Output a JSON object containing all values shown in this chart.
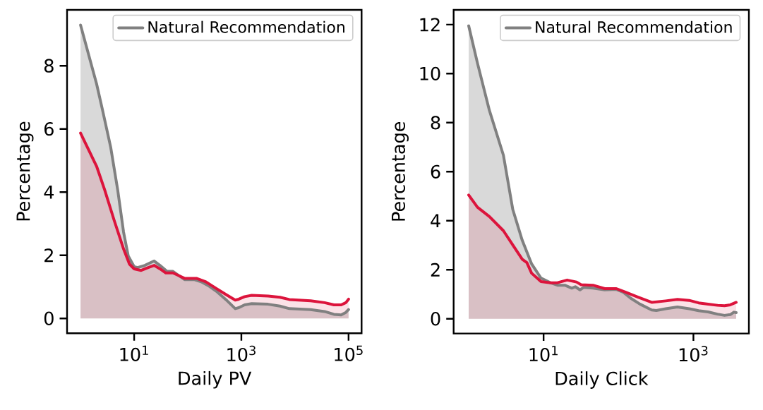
{
  "chart_data": [
    {
      "type": "area",
      "xlabel": "Daily PV",
      "ylabel": "Percentage",
      "log": "x",
      "legend": "top right",
      "xlim": [
        0.56,
        175000
      ],
      "ylim": [
        -0.47,
        9.77
      ],
      "xticks": [
        {
          "value": 10,
          "label": "10$^{1}$"
        },
        {
          "value": 1000,
          "label": "10$^{3}$"
        },
        {
          "value": 100000,
          "label": "10$^{5}$"
        }
      ],
      "yticks": [
        0,
        2,
        4,
        6,
        8
      ],
      "series": [
        {
          "name": "Natural Recommendation",
          "color": "#808080",
          "x": [
            1,
            1.99,
            2.56,
            3.65,
            4.93,
            6.35,
            7.76,
            10,
            11.6,
            15.8,
            23.6,
            30.3,
            41,
            53,
            87,
            131,
            178,
            241,
            343,
            513,
            769,
            894,
            1150,
            1560,
            3160,
            5250,
            7850,
            19600,
            35700,
            53300,
            72700,
            89000,
            100000
          ],
          "values": [
            9.29,
            7.43,
            6.61,
            5.42,
            4.07,
            2.73,
            1.98,
            1.64,
            1.61,
            1.68,
            1.82,
            1.68,
            1.49,
            1.49,
            1.23,
            1.23,
            1.16,
            1.04,
            0.86,
            0.6,
            0.31,
            0.34,
            0.43,
            0.47,
            0.45,
            0.39,
            0.31,
            0.28,
            0.22,
            0.13,
            0.11,
            0.19,
            0.28
          ]
        },
        {
          "color": "#dc143c",
          "x": [
            1,
            1.99,
            2.82,
            4.25,
            6.35,
            8.17,
            10,
            13.5,
            18.3,
            23.6,
            30.3,
            39,
            53,
            87,
            145,
            218,
            326,
            513,
            769,
            894,
            1150,
            1560,
            3160,
            5250,
            7850,
            19600,
            35700,
            53300,
            72700,
            89000,
            100000
          ],
          "values": [
            5.87,
            4.82,
            4.07,
            3.1,
            2.2,
            1.72,
            1.57,
            1.52,
            1.61,
            1.68,
            1.57,
            1.44,
            1.44,
            1.27,
            1.27,
            1.16,
            0.97,
            0.76,
            0.58,
            0.61,
            0.69,
            0.73,
            0.71,
            0.67,
            0.6,
            0.56,
            0.5,
            0.43,
            0.43,
            0.5,
            0.61
          ]
        }
      ]
    },
    {
      "type": "area",
      "xlabel": "Daily Click",
      "ylabel": "Percentage",
      "log": "x",
      "legend": "top right",
      "xlim": [
        0.63,
        5500
      ],
      "ylim": [
        -0.6,
        12.6
      ],
      "xticks": [
        {
          "value": 10,
          "label": "10$^{1}$"
        },
        {
          "value": 1000,
          "label": "10$^{3}$"
        }
      ],
      "yticks": [
        0,
        2,
        4,
        6,
        8,
        10,
        12
      ],
      "series": [
        {
          "name": "Natural Recommendation",
          "color": "#808080",
          "x": [
            1,
            1.31,
            1.89,
            2.91,
            3.88,
            5.19,
            6.92,
            9.23,
            12.3,
            15.3,
            19.2,
            23.8,
            26.5,
            30.6,
            34.1,
            45.6,
            65.4,
            93.7,
            116,
            145,
            193,
            277,
            320,
            427,
            612,
            879,
            1170,
            1570,
            2090,
            2600,
            3110,
            3470,
            3720
          ],
          "values": [
            11.95,
            10.43,
            8.5,
            6.67,
            4.46,
            3.2,
            2.24,
            1.66,
            1.47,
            1.37,
            1.37,
            1.25,
            1.31,
            1.18,
            1.28,
            1.25,
            1.18,
            1.2,
            1.08,
            0.84,
            0.6,
            0.36,
            0.34,
            0.41,
            0.48,
            0.41,
            0.33,
            0.28,
            0.19,
            0.14,
            0.17,
            0.27,
            0.25
          ]
        },
        {
          "color": "#dc143c",
          "x": [
            1,
            1.31,
            1.89,
            2.91,
            3.88,
            5.19,
            5.98,
            6.92,
            9.23,
            12.3,
            15.3,
            20.6,
            27.5,
            31.7,
            45.6,
            65.4,
            93.7,
            125,
            180,
            277,
            427,
            612,
            879,
            1170,
            1570,
            2090,
            2600,
            3110,
            3720
          ],
          "values": [
            5.05,
            4.55,
            4.17,
            3.59,
            3.01,
            2.43,
            2.29,
            1.86,
            1.52,
            1.47,
            1.47,
            1.58,
            1.5,
            1.39,
            1.37,
            1.23,
            1.23,
            1.08,
            0.89,
            0.67,
            0.73,
            0.79,
            0.75,
            0.65,
            0.6,
            0.55,
            0.53,
            0.57,
            0.67
          ]
        }
      ]
    }
  ]
}
